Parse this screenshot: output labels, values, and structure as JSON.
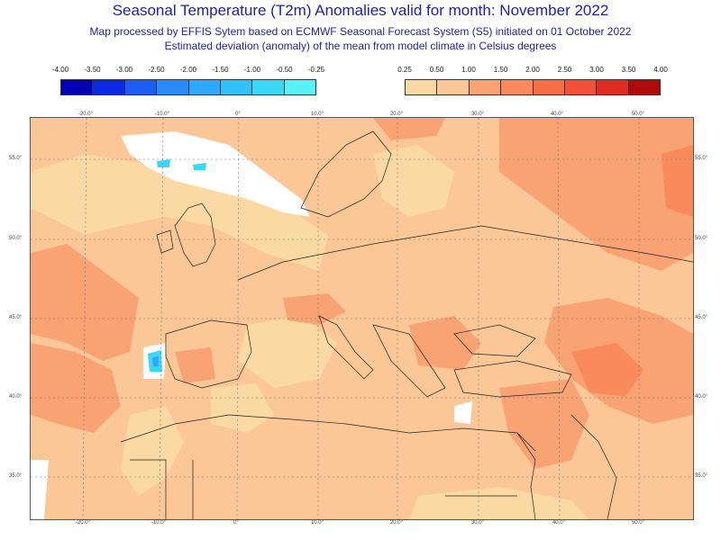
{
  "title": "Seasonal Temperature (T2m) Anomalies valid for month: November 2022",
  "subtitle_1": "Map processed by EFFIS Sytem based on ECMWF Seasonal Forecast System (S5) initiated on 01 October 2022",
  "subtitle_2": "Estimated deviation (anomaly) of the mean from model climate in Celsius degrees",
  "legend_negative": {
    "labels": [
      "-4.00",
      "-3.50",
      "-3.00",
      "-2.50",
      "-2.00",
      "-1.50",
      "-1.00",
      "-0.50",
      "-0.25"
    ],
    "colors": [
      "#0000b4",
      "#0a28e6",
      "#1e5af5",
      "#2c8cff",
      "#30a8ff",
      "#33c0f7",
      "#3ad8f5",
      "#5af2f7"
    ]
  },
  "legend_positive": {
    "labels": [
      "0.25",
      "0.50",
      "1.00",
      "1.50",
      "2.00",
      "2.50",
      "3.00",
      "3.50",
      "4.00"
    ],
    "colors": [
      "#fbd9a3",
      "#fbc796",
      "#f9a274",
      "#f88a5c",
      "#f66e48",
      "#f25038",
      "#e02a22",
      "#b00a0a"
    ]
  },
  "map": {
    "colors": {
      "white": "#ffffff",
      "light": "#fbd9a3",
      "mid": "#fbc796",
      "orange": "#f9a274",
      "deep": "#f88a5c",
      "cyan": "#3ad8f5",
      "blue": "#30a8ff",
      "grid": "#777777",
      "border": "#222222"
    },
    "lon_labels_top": [
      "-20.0°",
      "-10.0°",
      "0°",
      "10.0°",
      "20.0°",
      "30.0°",
      "40.0°",
      "50.0°"
    ],
    "lon_labels_bottom": [
      "-20.0°",
      "-10.0°",
      "0°",
      "10.0°",
      "20.0°",
      "30.0°",
      "40.0°",
      "50.0°"
    ],
    "lat_labels": [
      "55.0°",
      "50.0°",
      "45.0°",
      "40.0°",
      "35.0°"
    ]
  }
}
